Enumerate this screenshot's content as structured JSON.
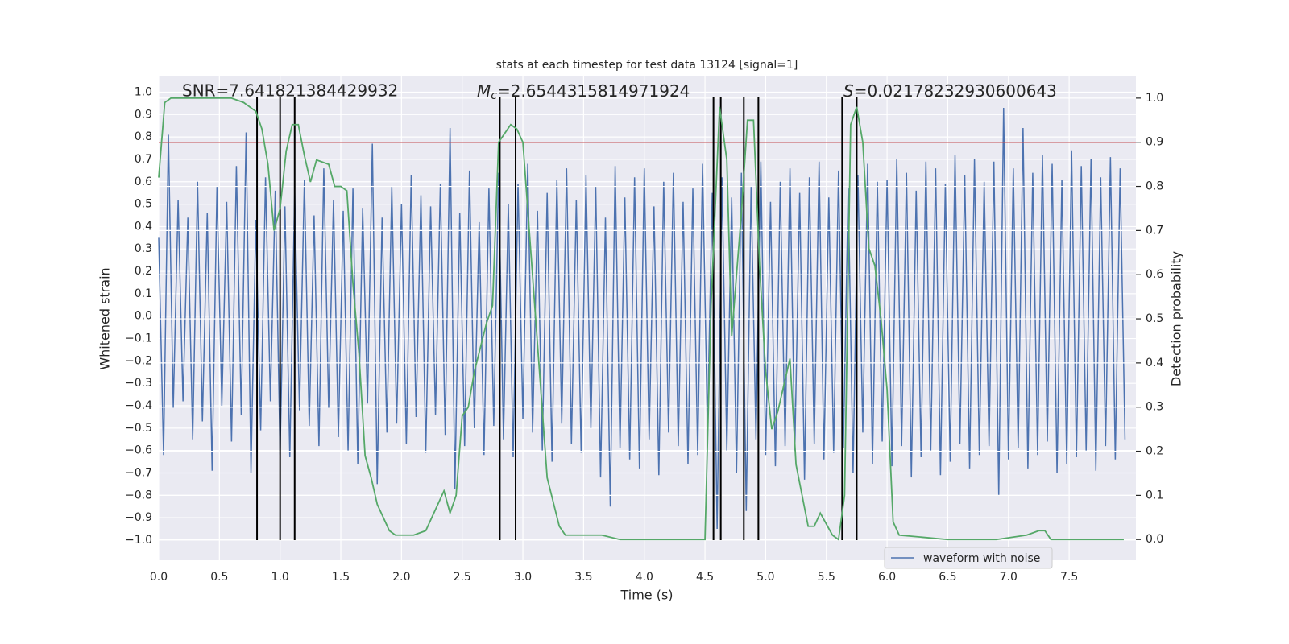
{
  "chart_data": {
    "type": "line",
    "title": "stats at each timestep for test data 13124 [signal=1]",
    "xlabel": "Time (s)",
    "ylabel": "Whitened strain",
    "y2label": "Detection probability",
    "annotations": [
      {
        "text": "SNR=7.641821384429932"
      },
      {
        "symbol": "M",
        "subscript": "c",
        "text": "=2.6544315814971924"
      },
      {
        "symbol": "S",
        "text": "=0.02178232930600643"
      }
    ],
    "xlim": [
      0,
      8.05
    ],
    "ylim": [
      -1.09,
      1.07
    ],
    "y2lim": [
      -0.047,
      1.049
    ],
    "xticks": [
      {
        "value": 0,
        "label": "0.0"
      },
      {
        "value": 0.5,
        "label": "0.5"
      },
      {
        "value": 1,
        "label": "1.0"
      },
      {
        "value": 1.5,
        "label": "1.5"
      },
      {
        "value": 2,
        "label": "2.0"
      },
      {
        "value": 2.5,
        "label": "2.5"
      },
      {
        "value": 3,
        "label": "3.0"
      },
      {
        "value": 3.5,
        "label": "3.5"
      },
      {
        "value": 4,
        "label": "4.0"
      },
      {
        "value": 4.5,
        "label": "4.5"
      },
      {
        "value": 5,
        "label": "5.0"
      },
      {
        "value": 5.5,
        "label": "5.5"
      },
      {
        "value": 6,
        "label": "6.0"
      },
      {
        "value": 6.5,
        "label": "6.5"
      },
      {
        "value": 7,
        "label": "7.0"
      },
      {
        "value": 7.5,
        "label": "7.5"
      }
    ],
    "yticks": [
      {
        "value": -1,
        "label": "−1.0"
      },
      {
        "value": -0.9,
        "label": "−0.9"
      },
      {
        "value": -0.8,
        "label": "−0.8"
      },
      {
        "value": -0.7,
        "label": "−0.7"
      },
      {
        "value": -0.6,
        "label": "−0.6"
      },
      {
        "value": -0.5,
        "label": "−0.5"
      },
      {
        "value": -0.4,
        "label": "−0.4"
      },
      {
        "value": -0.3,
        "label": "−0.3"
      },
      {
        "value": -0.2,
        "label": "−0.2"
      },
      {
        "value": -0.1,
        "label": "−0.1"
      },
      {
        "value": 0,
        "label": "0.0"
      },
      {
        "value": 0.1,
        "label": "0.1"
      },
      {
        "value": 0.2,
        "label": "0.2"
      },
      {
        "value": 0.3,
        "label": "0.3"
      },
      {
        "value": 0.4,
        "label": "0.4"
      },
      {
        "value": 0.5,
        "label": "0.5"
      },
      {
        "value": 0.6,
        "label": "0.6"
      },
      {
        "value": 0.7,
        "label": "0.7"
      },
      {
        "value": 0.8,
        "label": "0.8"
      },
      {
        "value": 0.9,
        "label": "0.9"
      },
      {
        "value": 1,
        "label": "1.0"
      }
    ],
    "y2ticks": [
      {
        "value": 0,
        "label": "0.0"
      },
      {
        "value": 0.1,
        "label": "0.1"
      },
      {
        "value": 0.2,
        "label": "0.2"
      },
      {
        "value": 0.3,
        "label": "0.3"
      },
      {
        "value": 0.4,
        "label": "0.4"
      },
      {
        "value": 0.5,
        "label": "0.5"
      },
      {
        "value": 0.6,
        "label": "0.6"
      },
      {
        "value": 0.7,
        "label": "0.7"
      },
      {
        "value": 0.8,
        "label": "0.8"
      },
      {
        "value": 0.9,
        "label": "0.9"
      },
      {
        "value": 1,
        "label": "1.0"
      }
    ],
    "grid": true,
    "legend": true,
    "threshold": {
      "value": 0.9,
      "axis": "y2",
      "color": "#c44e52"
    },
    "vlines": {
      "x": [
        0.81,
        1.0,
        1.12,
        2.81,
        2.94,
        4.57,
        4.63,
        4.82,
        4.94,
        5.63,
        5.75
      ],
      "ymin": -1.0,
      "ymax": 0.98,
      "color": "#000000"
    },
    "series": [
      {
        "name": "waveform with noise",
        "color": "#4c72b0",
        "x": [
          0,
          0.04,
          0.08,
          0.12,
          0.16,
          0.2,
          0.24,
          0.28,
          0.32,
          0.36,
          0.4,
          0.44,
          0.48,
          0.52,
          0.56,
          0.6,
          0.64,
          0.68,
          0.72,
          0.76,
          0.8,
          0.84,
          0.88,
          0.92,
          0.96,
          1.0,
          1.04,
          1.08,
          1.12,
          1.16,
          1.2,
          1.24,
          1.28,
          1.32,
          1.36,
          1.4,
          1.44,
          1.48,
          1.52,
          1.56,
          1.6,
          1.64,
          1.68,
          1.72,
          1.76,
          1.8,
          1.84,
          1.88,
          1.92,
          1.96,
          2.0,
          2.04,
          2.08,
          2.12,
          2.16,
          2.2,
          2.24,
          2.28,
          2.32,
          2.36,
          2.4,
          2.44,
          2.48,
          2.52,
          2.56,
          2.6,
          2.64,
          2.68,
          2.72,
          2.76,
          2.8,
          2.84,
          2.88,
          2.92,
          2.96,
          3.0,
          3.04,
          3.08,
          3.12,
          3.16,
          3.2,
          3.24,
          3.28,
          3.32,
          3.36,
          3.4,
          3.44,
          3.48,
          3.52,
          3.56,
          3.6,
          3.64,
          3.68,
          3.72,
          3.76,
          3.8,
          3.84,
          3.88,
          3.92,
          3.96,
          4.0,
          4.04,
          4.08,
          4.12,
          4.16,
          4.2,
          4.24,
          4.28,
          4.32,
          4.36,
          4.4,
          4.44,
          4.48,
          4.52,
          4.56,
          4.6,
          4.64,
          4.68,
          4.72,
          4.76,
          4.8,
          4.84,
          4.88,
          4.92,
          4.96,
          5.0,
          5.04,
          5.08,
          5.12,
          5.16,
          5.2,
          5.24,
          5.28,
          5.32,
          5.36,
          5.4,
          5.44,
          5.48,
          5.52,
          5.56,
          5.6,
          5.64,
          5.68,
          5.72,
          5.76,
          5.8,
          5.84,
          5.88,
          5.92,
          5.96,
          6.0,
          6.04,
          6.08,
          6.12,
          6.16,
          6.2,
          6.24,
          6.28,
          6.32,
          6.36,
          6.4,
          6.44,
          6.48,
          6.52,
          6.56,
          6.6,
          6.64,
          6.68,
          6.72,
          6.76,
          6.8,
          6.84,
          6.88,
          6.92,
          6.96,
          7.0,
          7.04,
          7.08,
          7.12,
          7.16,
          7.2,
          7.24,
          7.28,
          7.32,
          7.36,
          7.4,
          7.44,
          7.48,
          7.52,
          7.56,
          7.6,
          7.64,
          7.68,
          7.72,
          7.76,
          7.8,
          7.84,
          7.88,
          7.92,
          7.96
        ],
        "values": [
          0.35,
          -0.62,
          0.81,
          -0.41,
          0.52,
          -0.38,
          0.44,
          -0.55,
          0.6,
          -0.47,
          0.46,
          -0.69,
          0.58,
          -0.4,
          0.51,
          -0.56,
          0.67,
          -0.44,
          0.82,
          -0.7,
          0.43,
          -0.51,
          0.62,
          -0.38,
          0.56,
          -0.62,
          0.49,
          -0.63,
          0.55,
          -0.42,
          0.61,
          -0.49,
          0.45,
          -0.58,
          0.66,
          -0.41,
          0.52,
          -0.54,
          0.47,
          -0.6,
          0.57,
          -0.66,
          0.48,
          -0.39,
          0.77,
          -0.75,
          0.44,
          -0.52,
          0.58,
          -0.48,
          0.5,
          -0.57,
          0.63,
          -0.45,
          0.54,
          -0.61,
          0.49,
          -0.44,
          0.59,
          -0.53,
          0.84,
          -0.77,
          0.46,
          -0.58,
          0.65,
          -0.5,
          0.42,
          -0.62,
          0.57,
          -0.49,
          0.64,
          -0.55,
          0.5,
          -0.63,
          0.59,
          -0.46,
          0.68,
          -0.52,
          0.47,
          -0.6,
          0.55,
          -0.65,
          0.61,
          -0.48,
          0.66,
          -0.57,
          0.52,
          -0.61,
          0.63,
          -0.5,
          0.58,
          -0.72,
          0.44,
          -0.85,
          0.67,
          -0.59,
          0.53,
          -0.64,
          0.62,
          -0.68,
          0.66,
          -0.55,
          0.49,
          -0.71,
          0.6,
          -0.52,
          0.64,
          -0.58,
          0.51,
          -0.66,
          0.57,
          -0.62,
          0.68,
          -0.5,
          0.55,
          -0.95,
          0.62,
          -0.6,
          0.53,
          -0.7,
          0.64,
          -0.87,
          0.58,
          -0.55,
          0.69,
          -0.62,
          0.51,
          -0.67,
          0.6,
          -0.58,
          0.66,
          -0.6,
          0.55,
          -0.73,
          0.62,
          -0.57,
          0.69,
          -0.64,
          0.53,
          -0.61,
          0.65,
          -0.59,
          0.57,
          -0.7,
          0.63,
          -0.52,
          0.68,
          -0.66,
          0.6,
          -0.56,
          0.61,
          -0.67,
          0.7,
          -0.58,
          0.64,
          -0.72,
          0.56,
          -0.63,
          0.69,
          -0.6,
          0.66,
          -0.71,
          0.59,
          -0.65,
          0.72,
          -0.57,
          0.63,
          -0.68,
          0.7,
          -0.62,
          0.6,
          -0.58,
          0.69,
          -0.8,
          0.93,
          -0.64,
          0.66,
          -0.59,
          0.84,
          -0.68,
          0.64,
          -0.62,
          0.72,
          -0.56,
          0.68,
          -0.7,
          0.61,
          -0.66,
          0.74,
          -0.63,
          0.67,
          -0.6,
          0.7,
          -0.69,
          0.62,
          -0.58,
          0.71,
          -0.64,
          0.66,
          -0.55
        ]
      },
      {
        "color": "#55a868",
        "axis": "y2",
        "x": [
          0,
          0.05,
          0.1,
          0.2,
          0.3,
          0.4,
          0.5,
          0.6,
          0.7,
          0.8,
          0.85,
          0.9,
          0.95,
          1.0,
          1.05,
          1.1,
          1.15,
          1.2,
          1.25,
          1.3,
          1.4,
          1.45,
          1.5,
          1.55,
          1.6,
          1.65,
          1.7,
          1.75,
          1.8,
          1.85,
          1.9,
          1.95,
          2.0,
          2.1,
          2.2,
          2.25,
          2.35,
          2.4,
          2.45,
          2.5,
          2.55,
          2.6,
          2.7,
          2.75,
          2.8,
          2.9,
          2.95,
          3.0,
          3.1,
          3.2,
          3.3,
          3.35,
          3.5,
          3.65,
          3.8,
          4.0,
          4.3,
          4.5,
          4.55,
          4.62,
          4.68,
          4.72,
          4.8,
          4.85,
          4.9,
          4.95,
          5.0,
          5.05,
          5.1,
          5.2,
          5.25,
          5.35,
          5.4,
          5.45,
          5.55,
          5.6,
          5.65,
          5.7,
          5.75,
          5.8,
          5.85,
          5.9,
          5.95,
          6.0,
          6.05,
          6.1,
          6.5,
          6.9,
          7.15,
          7.25,
          7.3,
          7.35,
          7.7,
          7.95
        ],
        "values": [
          0.82,
          0.99,
          1.0,
          1.0,
          1.0,
          1.0,
          1.0,
          1.0,
          0.99,
          0.97,
          0.93,
          0.85,
          0.7,
          0.75,
          0.88,
          0.94,
          0.94,
          0.87,
          0.81,
          0.86,
          0.85,
          0.8,
          0.8,
          0.79,
          0.58,
          0.42,
          0.19,
          0.14,
          0.08,
          0.05,
          0.02,
          0.01,
          0.01,
          0.01,
          0.02,
          0.05,
          0.11,
          0.06,
          0.1,
          0.28,
          0.3,
          0.38,
          0.49,
          0.53,
          0.9,
          0.94,
          0.93,
          0.9,
          0.52,
          0.14,
          0.03,
          0.01,
          0.01,
          0.01,
          0.0,
          0.0,
          0.0,
          0.0,
          0.53,
          0.98,
          0.86,
          0.46,
          0.74,
          0.95,
          0.95,
          0.62,
          0.38,
          0.25,
          0.29,
          0.41,
          0.17,
          0.03,
          0.03,
          0.06,
          0.01,
          0.0,
          0.1,
          0.94,
          0.98,
          0.9,
          0.66,
          0.62,
          0.5,
          0.34,
          0.04,
          0.01,
          0.0,
          0.0,
          0.01,
          0.02,
          0.02,
          0.0,
          0.0,
          0.0
        ]
      }
    ]
  }
}
